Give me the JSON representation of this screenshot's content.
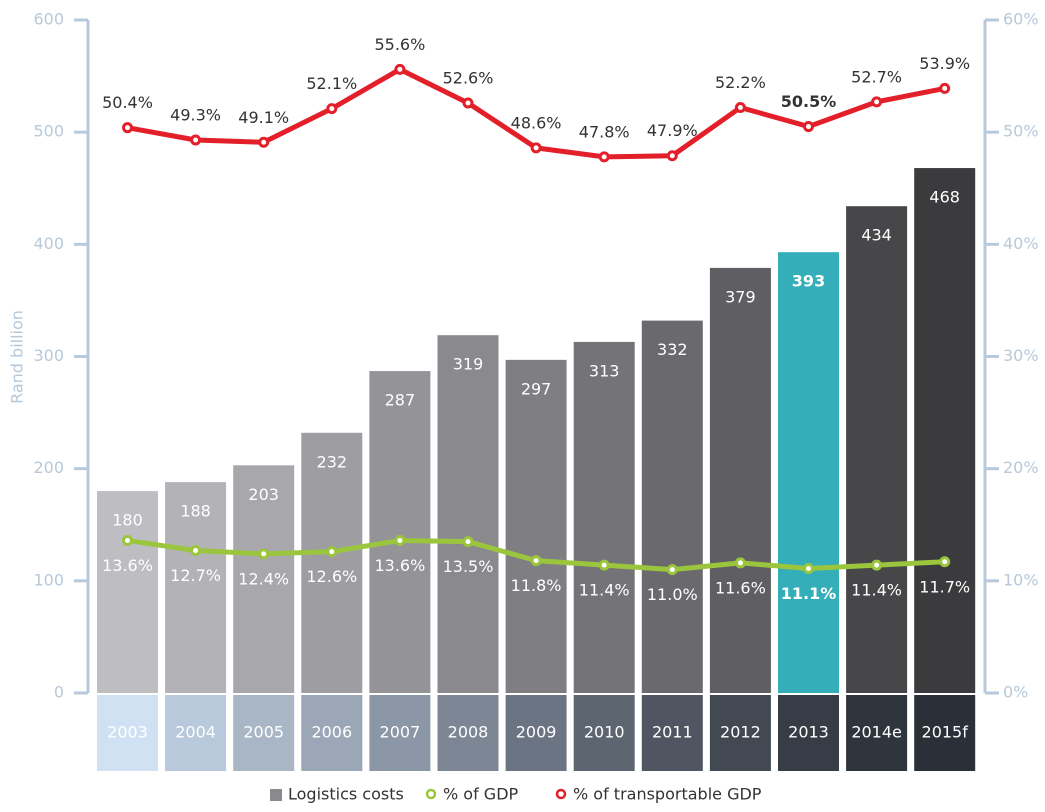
{
  "chart_data": {
    "type": "bar",
    "y_label": "Rand billion",
    "categories": [
      "2003",
      "2004",
      "2005",
      "2006",
      "2007",
      "2008",
      "2009",
      "2010",
      "2011",
      "2012",
      "2013",
      "2014e",
      "2015f"
    ],
    "category_colors": [
      "#cfe1f2",
      "#b8c9dc",
      "#a9b6c6",
      "#9ba7b7",
      "#8b96a6",
      "#7c8695",
      "#6b7482",
      "#5d6571",
      "#4f5661",
      "#424952",
      "#363d46",
      "#2f353d",
      "#2a3038"
    ],
    "highlight_category": "2013",
    "series": [
      {
        "name": "Logistics costs",
        "color": "#8a8a8e",
        "colors": [
          "#bebec2",
          "#b3b3b7",
          "#a8a8ac",
          "#9e9ea2",
          "#949498",
          "#8a8a8e",
          "#7f7f83",
          "#747478",
          "#6a6a6e",
          "#5f5f63",
          "#34aeb9",
          "#47474a",
          "#3b3b3d"
        ],
        "values": [
          180,
          188,
          203,
          232,
          287,
          319,
          297,
          313,
          332,
          379,
          393,
          434,
          468
        ]
      },
      {
        "name": "% of GDP",
        "color": "#9bc53d",
        "axis": "y2",
        "values": [
          13.6,
          12.7,
          12.4,
          12.6,
          13.6,
          13.5,
          11.8,
          11.4,
          11.0,
          11.6,
          11.1,
          11.4,
          11.7
        ],
        "value_labels": [
          "13.6%",
          "12.7%",
          "12.4%",
          "12.6%",
          "13.6%",
          "13.5%",
          "11.8%",
          "11.4%",
          "11.0%",
          "11.6%",
          "11.1%",
          "11.4%",
          "11.7%"
        ]
      },
      {
        "name": "% of transportable GDP",
        "color": "#e3202a",
        "axis": "y2",
        "values": [
          50.4,
          49.3,
          49.1,
          52.1,
          55.6,
          52.6,
          48.6,
          47.8,
          47.9,
          52.2,
          50.5,
          52.7,
          53.9
        ],
        "value_labels": [
          "50.4%",
          "49.3%",
          "49.1%",
          "52.1%",
          "55.6%",
          "52.6%",
          "48.6%",
          "47.8%",
          "47.9%",
          "52.2%",
          "50.5%",
          "52.7%",
          "53.9%"
        ]
      }
    ],
    "ylim": [
      0,
      600
    ],
    "yticks": [
      0,
      100,
      200,
      300,
      400,
      500,
      600
    ],
    "y2lim": [
      0,
      60
    ],
    "y2ticks": [
      {
        "value": 0,
        "label": "0%"
      },
      {
        "value": 10,
        "label": "10%"
      },
      {
        "value": 20,
        "label": "20%"
      },
      {
        "value": 30,
        "label": "30%"
      },
      {
        "value": 40,
        "label": "40%"
      },
      {
        "value": 50,
        "label": "50%"
      },
      {
        "value": 60,
        "label": "60%"
      }
    ],
    "axis_color": "#b7c9da"
  }
}
